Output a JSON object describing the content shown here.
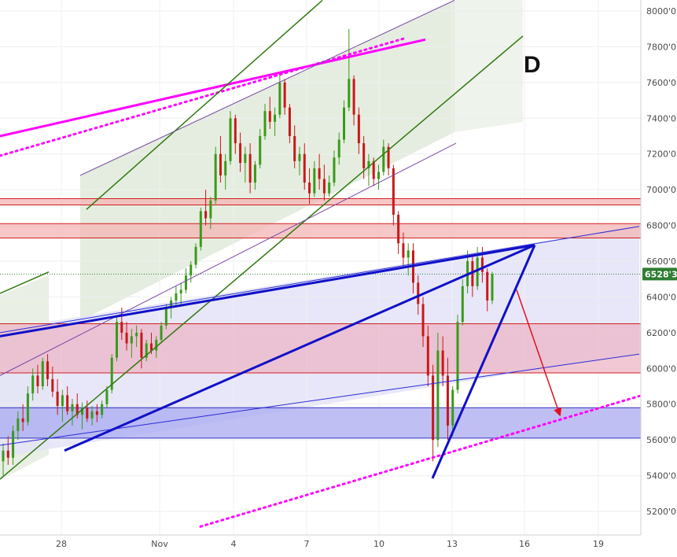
{
  "chart_data": {
    "type": "candlestick",
    "wave_label": "D",
    "last_price_label": "6528'3",
    "last_price": 6528,
    "ylim": [
      5100,
      8050
    ],
    "y_ticks": [
      {
        "value": 5200,
        "label": "5200'0"
      },
      {
        "value": 5400,
        "label": "5400'0"
      },
      {
        "value": 5600,
        "label": "5600'0"
      },
      {
        "value": 5800,
        "label": "5800'0"
      },
      {
        "value": 6000,
        "label": "6000'0"
      },
      {
        "value": 6200,
        "label": "6200'0"
      },
      {
        "value": 6400,
        "label": "6400'0"
      },
      {
        "value": 6600,
        "label": "6600'0"
      },
      {
        "value": 6800,
        "label": "6800'0"
      },
      {
        "value": 7000,
        "label": "7000'0"
      },
      {
        "value": 7200,
        "label": "7200'0"
      },
      {
        "value": 7400,
        "label": "7400'0"
      },
      {
        "value": 7600,
        "label": "7600'0"
      },
      {
        "value": 7800,
        "label": "7800'0"
      },
      {
        "value": 8000,
        "label": "8000'0"
      }
    ],
    "x_ticks": [
      "28",
      "Nov",
      "4",
      "7",
      "10",
      "13",
      "16",
      "19"
    ],
    "zones": [
      {
        "name": "resistance-thin",
        "from": 6915,
        "to": 6950,
        "color": "#f3b4b4"
      },
      {
        "name": "resistance",
        "from": 6730,
        "to": 6810,
        "color": "#f3b4b4"
      },
      {
        "name": "support-red",
        "from": 5975,
        "to": 6250,
        "color": "#ecb6c6"
      },
      {
        "name": "support-blue",
        "from": 5610,
        "to": 5780,
        "color": "#a9a9f0"
      }
    ],
    "candles": [
      [
        5480,
        5580,
        5400,
        5540
      ],
      [
        5540,
        5620,
        5460,
        5500
      ],
      [
        5500,
        5680,
        5460,
        5650
      ],
      [
        5650,
        5760,
        5600,
        5720
      ],
      [
        5720,
        5800,
        5650,
        5700
      ],
      [
        5700,
        5900,
        5680,
        5860
      ],
      [
        5860,
        6000,
        5820,
        5960
      ],
      [
        5960,
        6020,
        5860,
        5900
      ],
      [
        5900,
        6060,
        5880,
        6040
      ],
      [
        6040,
        6080,
        5900,
        5940
      ],
      [
        5940,
        6010,
        5840,
        5870
      ],
      [
        5870,
        5940,
        5740,
        5790
      ],
      [
        5790,
        5880,
        5700,
        5850
      ],
      [
        5850,
        5900,
        5740,
        5760
      ],
      [
        5760,
        5830,
        5680,
        5800
      ],
      [
        5800,
        5860,
        5720,
        5740
      ],
      [
        5740,
        5810,
        5660,
        5780
      ],
      [
        5780,
        5820,
        5700,
        5720
      ],
      [
        5720,
        5790,
        5680,
        5760
      ],
      [
        5760,
        5800,
        5700,
        5740
      ],
      [
        5740,
        5820,
        5720,
        5800
      ],
      [
        5800,
        5900,
        5780,
        5880
      ],
      [
        5880,
        6080,
        5860,
        6060
      ],
      [
        6060,
        6300,
        6040,
        6260
      ],
      [
        6260,
        6340,
        6160,
        6200
      ],
      [
        6200,
        6260,
        6100,
        6140
      ],
      [
        6140,
        6220,
        6060,
        6180
      ],
      [
        6180,
        6240,
        6120,
        6200
      ],
      [
        6200,
        6220,
        6000,
        6060
      ],
      [
        6060,
        6160,
        6040,
        6140
      ],
      [
        6140,
        6200,
        6080,
        6100
      ],
      [
        6100,
        6180,
        6060,
        6160
      ],
      [
        6160,
        6260,
        6140,
        6240
      ],
      [
        6240,
        6360,
        6220,
        6340
      ],
      [
        6340,
        6400,
        6280,
        6380
      ],
      [
        6380,
        6460,
        6340,
        6420
      ],
      [
        6420,
        6480,
        6360,
        6440
      ],
      [
        6440,
        6560,
        6420,
        6520
      ],
      [
        6520,
        6600,
        6480,
        6580
      ],
      [
        6580,
        6700,
        6560,
        6680
      ],
      [
        6680,
        6900,
        6660,
        6880
      ],
      [
        6880,
        7000,
        6800,
        6840
      ],
      [
        6840,
        6960,
        6780,
        6940
      ],
      [
        6940,
        7240,
        6920,
        7200
      ],
      [
        7200,
        7300,
        7040,
        7080
      ],
      [
        7080,
        7200,
        7000,
        7160
      ],
      [
        7160,
        7440,
        7140,
        7400
      ],
      [
        7400,
        7420,
        7200,
        7260
      ],
      [
        7260,
        7320,
        7100,
        7150
      ],
      [
        7150,
        7240,
        7040,
        7200
      ],
      [
        7200,
        7260,
        6980,
        7040
      ],
      [
        7040,
        7160,
        7000,
        7140
      ],
      [
        7140,
        7340,
        7120,
        7300
      ],
      [
        7300,
        7480,
        7280,
        7440
      ],
      [
        7440,
        7520,
        7340,
        7380
      ],
      [
        7380,
        7460,
        7300,
        7420
      ],
      [
        7420,
        7640,
        7400,
        7600
      ],
      [
        7600,
        7620,
        7420,
        7460
      ],
      [
        7460,
        7480,
        7260,
        7300
      ],
      [
        7300,
        7360,
        7120,
        7160
      ],
      [
        7160,
        7240,
        7080,
        7200
      ],
      [
        7200,
        7260,
        7000,
        7040
      ],
      [
        7040,
        7120,
        6920,
        6980
      ],
      [
        6980,
        7160,
        6960,
        7120
      ],
      [
        7120,
        7200,
        7000,
        7060
      ],
      [
        7060,
        7140,
        6940,
        6980
      ],
      [
        6980,
        7080,
        6960,
        7040
      ],
      [
        7040,
        7220,
        7020,
        7180
      ],
      [
        7180,
        7320,
        7140,
        7280
      ],
      [
        7280,
        7500,
        7260,
        7460
      ],
      [
        7460,
        7900,
        7440,
        7620
      ],
      [
        7620,
        7640,
        7360,
        7420
      ],
      [
        7420,
        7460,
        7200,
        7260
      ],
      [
        7260,
        7300,
        7060,
        7120
      ],
      [
        7120,
        7200,
        7020,
        7160
      ],
      [
        7160,
        7180,
        7020,
        7060
      ],
      [
        7060,
        7140,
        7000,
        7100
      ],
      [
        7100,
        7280,
        7080,
        7240
      ],
      [
        7240,
        7260,
        7080,
        7120
      ],
      [
        7120,
        7140,
        6800,
        6860
      ],
      [
        6860,
        6880,
        6640,
        6700
      ],
      [
        6700,
        6760,
        6560,
        6620
      ],
      [
        6620,
        6700,
        6520,
        6660
      ],
      [
        6660,
        6700,
        6420,
        6480
      ],
      [
        6480,
        6520,
        6300,
        6360
      ],
      [
        6360,
        6400,
        6120,
        6180
      ],
      [
        6180,
        6240,
        5900,
        5960
      ],
      [
        5960,
        6020,
        5480,
        5600
      ],
      [
        5600,
        6200,
        5560,
        6100
      ],
      [
        6100,
        6180,
        5900,
        5960
      ],
      [
        5960,
        6060,
        5600,
        5680
      ],
      [
        5680,
        5900,
        5620,
        5880
      ],
      [
        5880,
        6300,
        5860,
        6260
      ],
      [
        6260,
        6500,
        6240,
        6460
      ],
      [
        6460,
        6660,
        6420,
        6600
      ],
      [
        6600,
        6640,
        6400,
        6460
      ],
      [
        6460,
        6680,
        6440,
        6620
      ],
      [
        6620,
        6680,
        6480,
        6540
      ],
      [
        6540,
        6560,
        6320,
        6380
      ],
      [
        6380,
        6540,
        6360,
        6528
      ]
    ],
    "trendlines": [
      {
        "name": "magenta-upper",
        "color": "#ff00ff",
        "style": "solid",
        "points": [
          [
            0,
            7300
          ],
          [
            541,
            7840
          ]
        ]
      },
      {
        "name": "magenta-dotted-upper",
        "color": "#ff00ff",
        "style": "dotted",
        "points": [
          [
            0,
            7190
          ],
          [
            513,
            7845
          ]
        ]
      },
      {
        "name": "magenta-dotted-lower",
        "color": "#ff00ff",
        "style": "dotted",
        "points": [
          [
            255,
            5115
          ],
          [
            813,
            5845
          ]
        ]
      },
      {
        "name": "green-channel-upper",
        "color": "#2f7a10",
        "style": "solid",
        "points": [
          [
            110,
            6890
          ],
          [
            410,
            8060
          ]
        ]
      },
      {
        "name": "green-channel-lower",
        "color": "#2f7a10",
        "style": "solid",
        "points": [
          [
            0,
            5380
          ],
          [
            665,
            7860
          ]
        ]
      },
      {
        "name": "green-left",
        "color": "#2f7a10",
        "style": "solid",
        "points": [
          [
            0,
            6420
          ],
          [
            62,
            6540
          ]
        ]
      },
      {
        "name": "purple-channel-upper",
        "color": "#7a4aa8",
        "style": "solid",
        "points": [
          [
            102,
            7080
          ],
          [
            578,
            8060
          ]
        ]
      },
      {
        "name": "purple-channel-lower",
        "color": "#7a4aa8",
        "style": "solid",
        "points": [
          [
            0,
            5960
          ],
          [
            580,
            7260
          ]
        ]
      },
      {
        "name": "blue-channel-upper",
        "color": "#2a2ad8",
        "style": "solid",
        "points": [
          [
            0,
            6200
          ],
          [
            813,
            6795
          ]
        ]
      },
      {
        "name": "blue-channel-lower",
        "color": "#2a2ad8",
        "style": "solid",
        "points": [
          [
            0,
            5570
          ],
          [
            813,
            6080
          ]
        ]
      },
      {
        "name": "wedge-upper",
        "color": "#1010c8",
        "style": "solid",
        "points": [
          [
            0,
            6180
          ],
          [
            680,
            6690
          ]
        ]
      },
      {
        "name": "wedge-lower",
        "color": "#1010c8",
        "style": "solid",
        "points": [
          [
            82,
            5540
          ],
          [
            680,
            6690
          ]
        ]
      },
      {
        "name": "wedge-return",
        "color": "#1010c8",
        "style": "solid",
        "points": [
          [
            550,
            5385
          ],
          [
            680,
            6690
          ]
        ]
      }
    ],
    "projection_arrow": {
      "color": "#e01020",
      "from": [
        657,
        6440
      ],
      "to": [
        712,
        5740
      ]
    }
  }
}
